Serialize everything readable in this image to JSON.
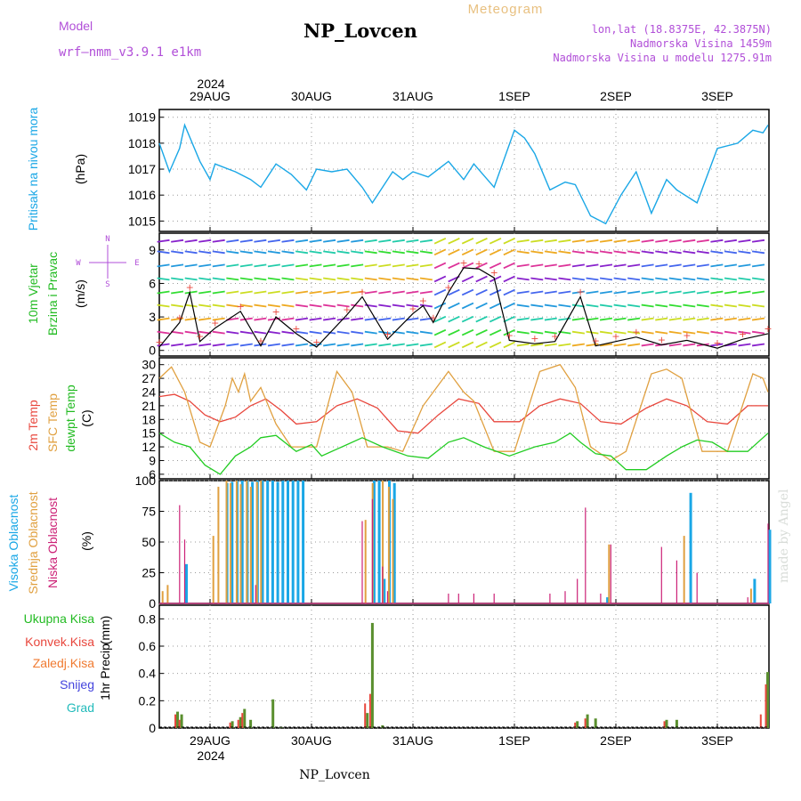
{
  "header": {
    "model_label": "Model",
    "model_name": "wrf–nmm_v3.9.1  e1km",
    "station": "NP_Lovcen",
    "product": "Meteogram",
    "lonlat": "lon,lat (18.8375E, 42.3875N)",
    "elevation": "Nadmorska Visina 1459m",
    "model_elevation": "Nadmorska Visina u modelu 1275.91m",
    "footer_station": "NP_Lovcen",
    "credit": "made by Angel",
    "year": "2024"
  },
  "colors": {
    "pressure": "#1aa7e6",
    "t2m": "#e8463c",
    "sfc": "#e0a040",
    "dew": "#22cc22",
    "high": "#1aa7e6",
    "mid": "#e0a040",
    "low": "#cc2277",
    "rain": "#5a8f2e",
    "conv": "#e8463c",
    "purple": "#b14fd8"
  },
  "time_axis": {
    "date_labels": [
      "29AUG",
      "30AUG",
      "31AUG",
      "1SEP",
      "2SEP",
      "3SEP"
    ],
    "range_days": [
      0,
      6
    ]
  },
  "panels": {
    "pressure": {
      "ylabel": "Pritisak na nivou mora",
      "unit": "(hPa)"
    },
    "wind": {
      "ylabel1": "10m Vjetar",
      "ylabel2": "Brzina i Pravac",
      "unit": "(m/s)",
      "compass_n": "N",
      "compass_e": "E",
      "compass_w": "W",
      "compass_s": "S"
    },
    "temp": {
      "label_t2m": "2m Temp",
      "label_sfc": "SFC Temp",
      "label_dew": "dewpt Temp",
      "unit": "(C)"
    },
    "cloud": {
      "label_high": "Visoka Oblacnost",
      "label_mid": "Srednja Oblacnost",
      "label_low": "Niska Oblacnost",
      "unit": "(%)"
    },
    "precip": {
      "legend": [
        "Ukupna Kisa",
        "Konvek.Kisa",
        "Zaledj.Kisa",
        "Snijeg",
        "Grad"
      ],
      "ylabel": "1hr Precip",
      "unit": "(mm)"
    }
  },
  "chart_data": [
    {
      "type": "line",
      "name": "pressure",
      "x_unit": "days since 2024-08-28 12:00",
      "ylim": [
        1014.6,
        1019.3
      ],
      "yticks": [
        1015,
        1016,
        1017,
        1018,
        1019
      ],
      "x": [
        0,
        0.1,
        0.2,
        0.25,
        0.4,
        0.5,
        0.55,
        0.75,
        0.9,
        1.0,
        1.15,
        1.3,
        1.45,
        1.55,
        1.7,
        1.85,
        2.0,
        2.1,
        2.3,
        2.4,
        2.5,
        2.65,
        2.85,
        3.0,
        3.1,
        3.3,
        3.5,
        3.6,
        3.7,
        3.85,
        4.0,
        4.1,
        4.25,
        4.4,
        4.55,
        4.7,
        4.85,
        5.0,
        5.1,
        5.3,
        5.5,
        5.7,
        5.85,
        5.95,
        6.0
      ],
      "y": [
        1018.0,
        1016.9,
        1017.8,
        1018.7,
        1017.3,
        1016.6,
        1017.2,
        1016.9,
        1016.6,
        1016.3,
        1017.2,
        1016.8,
        1016.2,
        1017.0,
        1016.9,
        1017.0,
        1016.3,
        1015.7,
        1016.9,
        1016.6,
        1016.9,
        1016.7,
        1017.3,
        1016.6,
        1017.2,
        1016.3,
        1018.5,
        1018.2,
        1017.6,
        1016.2,
        1016.5,
        1016.4,
        1015.2,
        1014.9,
        1016.0,
        1016.9,
        1015.3,
        1016.6,
        1016.2,
        1015.7,
        1017.8,
        1018.0,
        1018.5,
        1018.4,
        1018.7
      ]
    },
    {
      "type": "line",
      "name": "wind_speed",
      "x_unit": "days since 2024-08-28 12:00",
      "ylim": [
        -0.5,
        10.5
      ],
      "yticks": [
        0,
        3,
        6,
        9
      ],
      "x": [
        0,
        0.2,
        0.3,
        0.4,
        0.55,
        0.8,
        1.0,
        1.15,
        1.35,
        1.55,
        1.85,
        2.0,
        2.25,
        2.5,
        2.6,
        2.7,
        2.85,
        3.0,
        3.15,
        3.3,
        3.45,
        3.7,
        3.9,
        4.15,
        4.3,
        4.5,
        4.7,
        4.95,
        5.2,
        5.5,
        5.75,
        6.0
      ],
      "y": [
        0.3,
        2.5,
        5.2,
        0.8,
        2.0,
        3.5,
        0.4,
        3.0,
        1.5,
        0.3,
        3.2,
        4.8,
        1.0,
        3.3,
        4.0,
        2.5,
        5.2,
        7.4,
        7.3,
        6.5,
        0.9,
        0.6,
        0.8,
        4.8,
        0.4,
        0.8,
        1.2,
        0.5,
        0.9,
        0.2,
        1.0,
        1.5
      ]
    },
    {
      "type": "line",
      "name": "temperature",
      "x_unit": "days since 2024-08-28 12:00",
      "ylim": [
        5,
        31.5
      ],
      "yticks": [
        6,
        9,
        12,
        15,
        18,
        21,
        24,
        27,
        30
      ],
      "series": [
        {
          "name": "2m Temp",
          "x": [
            0,
            0.15,
            0.3,
            0.45,
            0.6,
            0.75,
            0.9,
            1.05,
            1.2,
            1.35,
            1.55,
            1.75,
            1.95,
            2.15,
            2.35,
            2.55,
            2.75,
            2.95,
            3.15,
            3.3,
            3.55,
            3.75,
            3.95,
            4.15,
            4.35,
            4.55,
            4.8,
            5.0,
            5.2,
            5.4,
            5.6,
            5.8,
            6.0
          ],
          "y": [
            23,
            23.5,
            22,
            19,
            17.5,
            18.5,
            21,
            22.5,
            20,
            17,
            17.5,
            21,
            22.5,
            20.5,
            15.5,
            15,
            19,
            22.5,
            21.5,
            17.5,
            17.5,
            21,
            22.5,
            21.5,
            17.5,
            17,
            20.5,
            22.5,
            21,
            17.5,
            17,
            21,
            21
          ]
        },
        {
          "name": "SFC Temp",
          "x": [
            0,
            0.12,
            0.25,
            0.4,
            0.5,
            0.65,
            0.72,
            0.78,
            0.84,
            0.9,
            1.0,
            1.15,
            1.3,
            1.55,
            1.75,
            1.9,
            2.05,
            2.25,
            2.4,
            2.6,
            2.85,
            3.0,
            3.1,
            3.3,
            3.5,
            3.75,
            3.95,
            4.1,
            4.25,
            4.45,
            4.6,
            4.85,
            5.0,
            5.15,
            5.35,
            5.6,
            5.85,
            5.95,
            6.0
          ],
          "y": [
            27,
            29.5,
            24,
            13,
            12,
            21,
            27,
            24,
            28,
            22,
            25,
            17,
            12,
            12,
            28.5,
            24,
            12,
            12,
            11,
            21,
            28.5,
            24,
            22,
            11,
            11,
            28.5,
            30,
            25,
            12,
            9,
            11,
            28,
            29,
            27,
            11,
            11,
            28,
            27,
            24
          ]
        },
        {
          "name": "dewpt Temp",
          "x": [
            0,
            0.15,
            0.3,
            0.45,
            0.6,
            0.75,
            0.9,
            1.0,
            1.15,
            1.35,
            1.5,
            1.6,
            1.8,
            2.0,
            2.2,
            2.45,
            2.65,
            2.85,
            3.0,
            3.2,
            3.45,
            3.7,
            3.9,
            4.05,
            4.15,
            4.3,
            4.45,
            4.6,
            4.8,
            5.0,
            5.15,
            5.3,
            5.45,
            5.6,
            5.8,
            6.0
          ],
          "y": [
            15,
            13,
            12,
            8,
            6,
            10,
            12,
            14,
            14.5,
            11,
            12.5,
            10,
            12,
            14,
            12,
            10,
            9.5,
            13,
            14,
            12,
            10,
            12,
            13,
            15,
            13,
            10.5,
            10,
            7,
            7,
            10,
            12,
            13.5,
            13,
            11,
            11,
            15
          ]
        }
      ]
    },
    {
      "type": "bar",
      "name": "cloud_cover",
      "x_unit": "days since 2024-08-28 12:00",
      "ylim": [
        0,
        100
      ],
      "yticks": [
        0,
        25,
        50,
        75,
        100
      ],
      "series": [
        {
          "name": "Visoka Oblacnost",
          "x": [
            0.25,
            0.65,
            0.7,
            0.75,
            0.8,
            0.85,
            0.9,
            0.95,
            1.0,
            1.05,
            1.1,
            1.15,
            1.2,
            1.25,
            1.3,
            1.35,
            1.4,
            2.1,
            2.15,
            2.2,
            2.25,
            2.3,
            4.4,
            5.22,
            5.85,
            6.0
          ],
          "y": [
            32,
            98,
            99,
            100,
            100,
            100,
            99,
            100,
            100,
            100,
            100,
            99,
            100,
            100,
            100,
            100,
            100,
            100,
            100,
            20,
            100,
            98,
            5,
            90,
            20,
            60
          ]
        },
        {
          "name": "Srednja Oblacnost",
          "x": [
            0.05,
            0.1,
            0.55,
            0.6,
            0.68,
            0.72,
            0.78,
            0.82,
            0.88,
            0.92,
            0.98,
            1.02,
            2.05,
            2.12,
            2.22,
            2.28,
            2.32,
            4.45,
            5.19,
            5.85
          ],
          "y": [
            10,
            15,
            55,
            95,
            100,
            98,
            100,
            97,
            100,
            95,
            99,
            100,
            68,
            98,
            100,
            95,
            85,
            48,
            55,
            12
          ]
        },
        {
          "name": "Niska Oblacnost",
          "x": [
            0.2,
            0.25,
            0.95,
            2.0,
            2.1,
            2.2,
            2.25,
            2.85,
            2.95,
            3.1,
            3.3,
            3.85,
            4.0,
            4.12,
            4.2,
            4.35,
            4.45,
            4.95,
            5.1,
            5.3,
            5.8,
            6.0
          ],
          "y": [
            80,
            52,
            15,
            67,
            85,
            30,
            10,
            8,
            8,
            8,
            8,
            8,
            10,
            20,
            78,
            8,
            48,
            46,
            35,
            25,
            5,
            65
          ]
        }
      ]
    },
    {
      "type": "bar",
      "name": "precipitation_1hr",
      "x_unit": "days since 2024-08-28 12:00",
      "ylim": [
        0,
        0.9
      ],
      "yticks": [
        0,
        0.2,
        0.4,
        0.6,
        0.8
      ],
      "series": [
        {
          "name": "Ukupna Kisa",
          "x": [
            0.18,
            0.22,
            0.72,
            0.8,
            0.84,
            0.9,
            1.12,
            1.2,
            2.05,
            2.1,
            2.2,
            4.12,
            4.22,
            4.3,
            5.0,
            5.1,
            6.0
          ],
          "y": [
            0.12,
            0.1,
            0.05,
            0.08,
            0.14,
            0.06,
            0.21,
            0.01,
            0.11,
            0.77,
            0.02,
            0.05,
            0.1,
            0.07,
            0.06,
            0.06,
            0.41
          ]
        },
        {
          "name": "Konvek.Kisa",
          "x": [
            0.18,
            0.22,
            0.72,
            0.8,
            0.84,
            2.05,
            2.1,
            4.12,
            4.22,
            5.0,
            5.95,
            6.0
          ],
          "y": [
            0.1,
            0.06,
            0.04,
            0.06,
            0.11,
            0.18,
            0.25,
            0.04,
            0.07,
            0.05,
            0.1,
            0.32
          ]
        }
      ]
    }
  ]
}
